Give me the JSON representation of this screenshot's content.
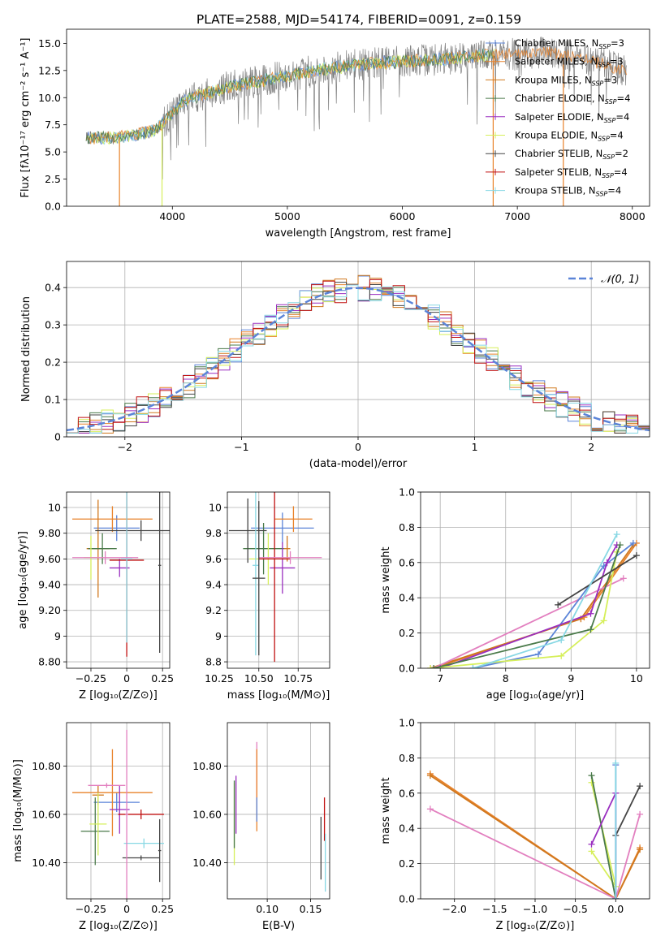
{
  "figure": {
    "title": "PLATE=2588, MJD=54174, FIBERID=0091, z=0.159"
  },
  "colors": {
    "Chabrier MILES": "#5b84d8",
    "Salpeter MILES": "#e8822a",
    "Kroupa MILES": "#d0781e",
    "Chabrier ELODIE": "#4a7a4a",
    "Salpeter ELODIE": "#9a2fc0",
    "Kroupa ELODIE": "#d6ef5a",
    "Chabrier STELIB": "#444444",
    "Salpeter STELIB": "#c01010",
    "Kroupa STELIB": "#88d8e4",
    "data": "#808080",
    "normal": "#5b84d8",
    "pink": "#e27fbf"
  },
  "chart_data": [
    {
      "id": "spectrum",
      "type": "line",
      "xlabel": "wavelength [Angstrom, rest frame]",
      "ylabel": "Flux [fλ10⁻¹⁷ erg cm⁻² s⁻¹ A⁻¹]",
      "xlim": [
        3080,
        8150
      ],
      "ylim": [
        0,
        16.3
      ],
      "xticks": [
        4000,
        5000,
        6000,
        7000,
        8000
      ],
      "yticks": [
        0.0,
        2.5,
        5.0,
        7.5,
        10.0,
        12.5,
        15.0
      ],
      "legend": [
        {
          "name": "Chabrier MILES",
          "label": "Chabrier MILES, N",
          "sub": "SSP",
          "suffix": "=3"
        },
        {
          "name": "Salpeter MILES",
          "label": "Salpeter MILES, N",
          "sub": "SSP",
          "suffix": "=3"
        },
        {
          "name": "Kroupa MILES",
          "label": "Kroupa MILES, N",
          "sub": "SSP",
          "suffix": "=3"
        },
        {
          "name": "Chabrier ELODIE",
          "label": "Chabrier ELODIE, N",
          "sub": "SSP",
          "suffix": "=4"
        },
        {
          "name": "Salpeter ELODIE",
          "label": "Salpeter ELODIE, N",
          "sub": "SSP",
          "suffix": "=4"
        },
        {
          "name": "Kroupa ELODIE",
          "label": "Kroupa ELODIE, N",
          "sub": "SSP",
          "suffix": "=4"
        },
        {
          "name": "Chabrier STELIB",
          "label": "Chabrier STELIB, N",
          "sub": "SSP",
          "suffix": "=2"
        },
        {
          "name": "Salpeter STELIB",
          "label": "Salpeter STELIB, N",
          "sub": "SSP",
          "suffix": "=4"
        },
        {
          "name": "Kroupa STELIB",
          "label": "Kroupa STELIB, N",
          "sub": "SSP",
          "suffix": "=4"
        }
      ],
      "legend_placement": "right",
      "continuum": {
        "x": [
          3250,
          3500,
          3700,
          3850,
          3950,
          4100,
          4300,
          4500,
          4800,
          5000,
          5300,
          5600,
          5900,
          6100,
          6400,
          6700,
          7000,
          7300,
          7600,
          7900
        ],
        "y": [
          6.3,
          6.3,
          6.6,
          7.0,
          8.0,
          9.7,
          10.4,
          11.0,
          11.6,
          12.0,
          12.6,
          13.0,
          13.3,
          13.4,
          13.6,
          13.9,
          14.0,
          14.2,
          13.5,
          12.6
        ]
      },
      "model_drops": [
        {
          "name": "Salpeter MILES",
          "x": 3540
        },
        {
          "name": "Kroupa ELODIE",
          "x": 3910
        },
        {
          "name": "Salpeter MILES",
          "x": 6790
        },
        {
          "name": "Salpeter MILES",
          "x": 7400
        }
      ]
    },
    {
      "id": "residuals",
      "type": "histogram",
      "xlabel": "(data-model)/error",
      "ylabel": "Normed distribution",
      "xlim": [
        -2.5,
        2.5
      ],
      "ylim": [
        0,
        0.47
      ],
      "xticks": [
        -2,
        -1,
        0,
        1,
        2
      ],
      "yticks": [
        0.0,
        0.1,
        0.2,
        0.3,
        0.4
      ],
      "grid": true,
      "legend": [
        {
          "label": "𝒩(0, 1)"
        }
      ],
      "legend_placement": "top-right",
      "bin_width": 0.1,
      "normal": {
        "mean": 0,
        "sigma": 1
      }
    },
    {
      "id": "age_vs_Z",
      "type": "errorbar",
      "xlabel": "Z [log₁₀(Z/Z⊙)]",
      "ylabel": "age  [log₁₀(age/yr)]",
      "xlim": [
        -0.42,
        0.3
      ],
      "ylim": [
        8.75,
        10.12
      ],
      "xticks": [
        -0.25,
        0.0,
        0.25
      ],
      "yticks": [
        8.8,
        9.0,
        9.2,
        9.4,
        9.6,
        9.8,
        10.0
      ],
      "grid": true,
      "points": [
        {
          "name": "Chabrier MILES",
          "x": -0.07,
          "y": 9.84,
          "xerr": 0.16,
          "yerr": 0.1
        },
        {
          "name": "Salpeter MILES",
          "x": -0.1,
          "y": 9.91,
          "xerr": 0.28,
          "yerr": 0.1
        },
        {
          "name": "Kroupa MILES",
          "x": -0.2,
          "y": 9.68,
          "xerr": 0.08,
          "yerr": 0.38
        },
        {
          "name": "Chabrier ELODIE",
          "x": -0.17,
          "y": 9.68,
          "xerr": 0.1,
          "yerr": 0.12
        },
        {
          "name": "Salpeter ELODIE",
          "x": -0.05,
          "y": 9.53,
          "xerr": 0.07,
          "yerr": 0.07
        },
        {
          "name": "Kroupa ELODIE",
          "x": -0.25,
          "y": 9.61,
          "xerr": 0.05,
          "yerr": 0.17
        },
        {
          "name": "Chabrier STELIB",
          "x": 0.1,
          "y": 9.82,
          "xerr": 0.32,
          "yerr": 0.08
        },
        {
          "name": "Salpeter STELIB",
          "x": 0.0,
          "y": 9.59,
          "xerr": 0.12,
          "yerr": 0.75
        },
        {
          "name": "Kroupa STELIB",
          "x": 0.0,
          "y": 9.6,
          "xerr": 0.04,
          "yerr": 0.65
        },
        {
          "name": "pink",
          "x": -0.15,
          "y": 9.61,
          "xerr": 0.23,
          "yerr": 0.05
        },
        {
          "name": "Chabrier STELIB",
          "x": 0.23,
          "y": 9.55,
          "xerr": 0.01,
          "yerr": 0.68
        }
      ]
    },
    {
      "id": "age_vs_mass",
      "type": "errorbar",
      "xlabel": "mass [log₁₀(M/M⊙)]",
      "ylabel": "",
      "xlim": [
        10.3,
        10.95
      ],
      "ylim": [
        8.75,
        10.12
      ],
      "xticks": [
        10.25,
        10.5,
        10.75
      ],
      "yticks": [
        8.8,
        9.0,
        9.2,
        9.4,
        9.6,
        9.8,
        10.0
      ],
      "grid": true,
      "points": [
        {
          "name": "Chabrier MILES",
          "x": 10.65,
          "y": 9.84,
          "xerr": 0.2,
          "yerr": 0.12
        },
        {
          "name": "Salpeter MILES",
          "x": 10.72,
          "y": 9.91,
          "xerr": 0.12,
          "yerr": 0.1
        },
        {
          "name": "Kroupa MILES",
          "x": 10.68,
          "y": 9.68,
          "xerr": 0.02,
          "yerr": 0.1
        },
        {
          "name": "Chabrier ELODIE",
          "x": 10.53,
          "y": 9.68,
          "xerr": 0.13,
          "yerr": 0.2
        },
        {
          "name": "Salpeter ELODIE",
          "x": 10.65,
          "y": 9.53,
          "xerr": 0.08,
          "yerr": 0.2
        },
        {
          "name": "Kroupa ELODIE",
          "x": 10.56,
          "y": 9.6,
          "xerr": 0.12,
          "yerr": 0.2
        },
        {
          "name": "Chabrier STELIB",
          "x": 10.43,
          "y": 9.82,
          "xerr": 0.12,
          "yerr": 0.25
        },
        {
          "name": "Salpeter STELIB",
          "x": 10.6,
          "y": 9.6,
          "xerr": 0.1,
          "yerr": 0.8
        },
        {
          "name": "Kroupa STELIB",
          "x": 10.48,
          "y": 9.55,
          "xerr": 0.02,
          "yerr": 0.7
        },
        {
          "name": "pink",
          "x": 10.7,
          "y": 9.61,
          "xerr": 0.2,
          "yerr": 0.05
        },
        {
          "name": "Chabrier STELIB",
          "x": 10.5,
          "y": 9.45,
          "xerr": 0.04,
          "yerr": 0.6
        }
      ]
    },
    {
      "id": "massweight_vs_age",
      "type": "line",
      "xlabel": "age  [log₁₀(age/yr)]",
      "ylabel": "mass weight",
      "xlim": [
        6.7,
        10.2
      ],
      "ylim": [
        0,
        1.0
      ],
      "xticks": [
        7,
        8,
        9,
        10
      ],
      "yticks": [
        0.0,
        0.2,
        0.4,
        0.6,
        0.8,
        1.0
      ],
      "grid": true,
      "series": [
        {
          "name": "Salpeter MILES",
          "x": [
            6.9,
            9.2,
            10.0
          ],
          "y": [
            0.0,
            0.29,
            0.71
          ]
        },
        {
          "name": "Kroupa MILES",
          "x": [
            6.85,
            9.15,
            9.95
          ],
          "y": [
            0.0,
            0.28,
            0.7
          ]
        },
        {
          "name": "pink",
          "x": [
            6.9,
            9.8
          ],
          "y": [
            0.0,
            0.51
          ]
        },
        {
          "name": "Chabrier MILES",
          "x": [
            7.5,
            8.5,
            9.5,
            9.95
          ],
          "y": [
            0.0,
            0.08,
            0.58,
            0.71
          ]
        },
        {
          "name": "Salpeter ELODIE",
          "x": [
            7.0,
            9.3,
            9.55,
            9.7
          ],
          "y": [
            0.0,
            0.31,
            0.6,
            0.7
          ]
        },
        {
          "name": "Kroupa ELODIE",
          "x": [
            6.85,
            8.85,
            9.5,
            9.7
          ],
          "y": [
            0.0,
            0.07,
            0.27,
            0.66
          ]
        },
        {
          "name": "Chabrier ELODIE",
          "x": [
            6.9,
            9.3,
            9.75
          ],
          "y": [
            0.0,
            0.22,
            0.7
          ]
        },
        {
          "name": "Chabrier STELIB",
          "x": [
            8.8,
            10.0
          ],
          "y": [
            0.36,
            0.64
          ]
        },
        {
          "name": "Kroupa STELIB",
          "x": [
            7.5,
            8.85,
            9.7
          ],
          "y": [
            0.0,
            0.16,
            0.76
          ]
        }
      ]
    },
    {
      "id": "mass_vs_Z",
      "type": "errorbar",
      "xlabel": "Z [log₁₀(Z/Z⊙)]",
      "ylabel": "mass [log₁₀(M/M⊙)]",
      "xlim": [
        -0.42,
        0.3
      ],
      "ylim": [
        10.25,
        10.98
      ],
      "xticks": [
        -0.25,
        0.0,
        0.25
      ],
      "yticks": [
        10.4,
        10.6,
        10.8
      ],
      "grid": true,
      "points": [
        {
          "name": "Chabrier MILES",
          "x": -0.07,
          "y": 10.65,
          "xerr": 0.16,
          "yerr": 0.04
        },
        {
          "name": "Salpeter MILES",
          "x": -0.1,
          "y": 10.69,
          "xerr": 0.28,
          "yerr": 0.18
        },
        {
          "name": "Kroupa MILES",
          "x": -0.2,
          "y": 10.68,
          "xerr": 0.04,
          "yerr": 0.04
        },
        {
          "name": "Chabrier ELODIE",
          "x": -0.22,
          "y": 10.53,
          "xerr": 0.1,
          "yerr": 0.14
        },
        {
          "name": "Salpeter ELODIE",
          "x": -0.05,
          "y": 10.62,
          "xerr": 0.07,
          "yerr": 0.1
        },
        {
          "name": "Kroupa ELODIE",
          "x": -0.2,
          "y": 10.56,
          "xerr": 0.06,
          "yerr": 0.13
        },
        {
          "name": "Chabrier STELIB",
          "x": 0.1,
          "y": 10.42,
          "xerr": 0.13,
          "yerr": 0.01
        },
        {
          "name": "Salpeter STELIB",
          "x": 0.1,
          "y": 10.6,
          "xerr": 0.16,
          "yerr": 0.02
        },
        {
          "name": "Kroupa STELIB",
          "x": 0.12,
          "y": 10.48,
          "xerr": 0.14,
          "yerr": 0.02
        },
        {
          "name": "pink",
          "x": -0.14,
          "y": 10.72,
          "xerr": 0.13,
          "yerr": 0.01
        },
        {
          "name": "pink",
          "x": 0.0,
          "y": 10.6,
          "xerr": 0.01,
          "yerr": 0.35
        },
        {
          "name": "Chabrier STELIB",
          "x": 0.23,
          "y": 10.45,
          "xerr": 0.01,
          "yerr": 0.13
        }
      ]
    },
    {
      "id": "mass_vs_EBV",
      "type": "errorbar",
      "xlabel": "E(B-V)",
      "ylabel": "",
      "xlim": [
        0.054,
        0.172
      ],
      "ylim": [
        10.25,
        10.98
      ],
      "xticks": [
        0.1,
        0.15
      ],
      "yticks": [
        10.4,
        10.6,
        10.8
      ],
      "grid": true,
      "points": [
        {
          "name": "Kroupa ELODIE",
          "x": 0.062,
          "y": 10.56,
          "xerr": 0,
          "yerr": 0.17
        },
        {
          "name": "Chabrier ELODIE",
          "x": 0.062,
          "y": 10.6,
          "xerr": 0,
          "yerr": 0.14
        },
        {
          "name": "Salpeter ELODIE",
          "x": 0.064,
          "y": 10.64,
          "xerr": 0,
          "yerr": 0.12
        },
        {
          "name": "pink",
          "x": 0.088,
          "y": 10.78,
          "xerr": 0,
          "yerr": 0.12
        },
        {
          "name": "Salpeter MILES",
          "x": 0.088,
          "y": 10.7,
          "xerr": 0,
          "yerr": 0.17
        },
        {
          "name": "Chabrier MILES",
          "x": 0.088,
          "y": 10.62,
          "xerr": 0,
          "yerr": 0.05
        },
        {
          "name": "Chabrier STELIB",
          "x": 0.162,
          "y": 10.46,
          "xerr": 0,
          "yerr": 0.13
        },
        {
          "name": "Salpeter STELIB",
          "x": 0.166,
          "y": 10.58,
          "xerr": 0,
          "yerr": 0.09
        },
        {
          "name": "Kroupa STELIB",
          "x": 0.167,
          "y": 10.4,
          "xerr": 0,
          "yerr": 0.12
        }
      ]
    },
    {
      "id": "massweight_vs_Z",
      "type": "line",
      "xlabel": "Z [log₁₀(Z/Z⊙)]",
      "ylabel": "mass weight",
      "xlim": [
        -2.42,
        0.42
      ],
      "ylim": [
        0,
        1.0
      ],
      "xticks": [
        -2.0,
        -1.5,
        -1.0,
        -0.5,
        0.0
      ],
      "yticks": [
        0.0,
        0.2,
        0.4,
        0.6,
        0.8,
        1.0
      ],
      "grid": true,
      "series": [
        {
          "name": "Salpeter MILES",
          "x": [
            -2.3,
            0.0,
            0.3
          ],
          "y": [
            0.71,
            0.0,
            0.29
          ]
        },
        {
          "name": "Kroupa MILES",
          "x": [
            -2.3,
            0.0,
            0.3
          ],
          "y": [
            0.7,
            0.0,
            0.28
          ]
        },
        {
          "name": "pink",
          "x": [
            -2.3,
            0.0,
            0.3
          ],
          "y": [
            0.51,
            0.0,
            0.48
          ]
        },
        {
          "name": "Chabrier STELIB",
          "x": [
            0.0,
            0.3
          ],
          "y": [
            0.36,
            0.64
          ]
        },
        {
          "name": "Kroupa ELODIE",
          "x": [
            -0.3,
            0.0,
            -0.3
          ],
          "y": [
            0.27,
            0.07,
            0.66
          ]
        },
        {
          "name": "Chabrier ELODIE",
          "x": [
            -0.3,
            0.0
          ],
          "y": [
            0.7,
            0.0
          ]
        },
        {
          "name": "Salpeter ELODIE",
          "x": [
            -0.3,
            0.0,
            0.0
          ],
          "y": [
            0.31,
            0.6,
            0.0
          ]
        },
        {
          "name": "Chabrier MILES",
          "x": [
            0.0,
            0.0
          ],
          "y": [
            0.0,
            0.76
          ]
        },
        {
          "name": "Kroupa STELIB",
          "x": [
            0.0,
            0.0
          ],
          "y": [
            0.0,
            0.77
          ]
        }
      ]
    }
  ]
}
